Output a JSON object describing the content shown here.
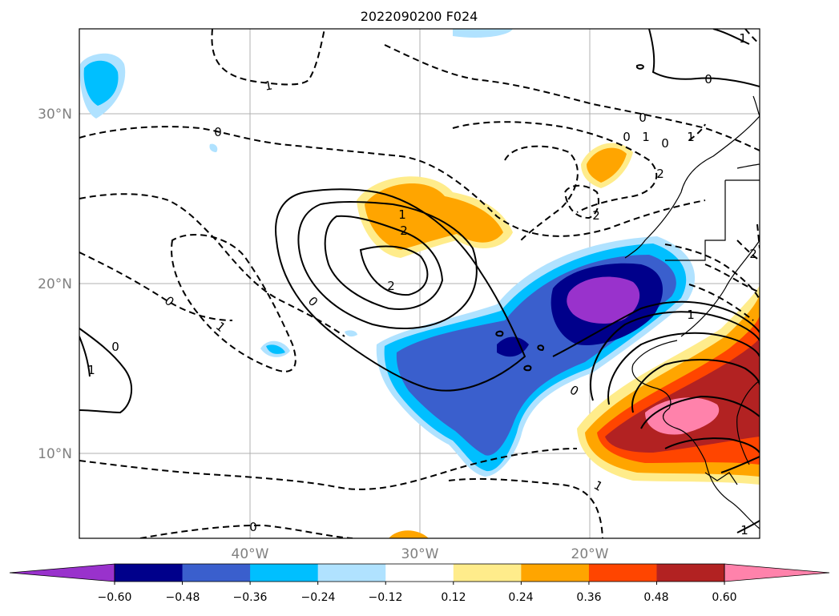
{
  "title": "2022090200 F024",
  "axes": {
    "lat_ticks": [
      "30°N",
      "20°N",
      "10°N"
    ],
    "lon_ticks": [
      "40°W",
      "30°W",
      "20°W"
    ]
  },
  "colorbar": {
    "tick_labels": [
      "−0.60",
      "−0.48",
      "−0.36",
      "−0.24",
      "−0.12",
      "0.12",
      "0.24",
      "0.36",
      "0.48",
      "0.60"
    ],
    "colors": [
      "#9932cc",
      "#00008b",
      "#3a5fcd",
      "#00bfff",
      "#b0e2ff",
      "#ffffff",
      "#ffec8b",
      "#ffa500",
      "#ff4500",
      "#b22222",
      "#ff82ab"
    ]
  },
  "contour_labels": {
    "dashed": [
      "1",
      "0",
      "0",
      "1",
      "0",
      "0",
      "1",
      "2",
      "2",
      "0",
      "1",
      "0",
      "1",
      "2"
    ],
    "solid": [
      "0",
      "1",
      "2",
      "2",
      "0",
      "1",
      "1",
      "0",
      "1",
      "1",
      "0"
    ]
  }
}
